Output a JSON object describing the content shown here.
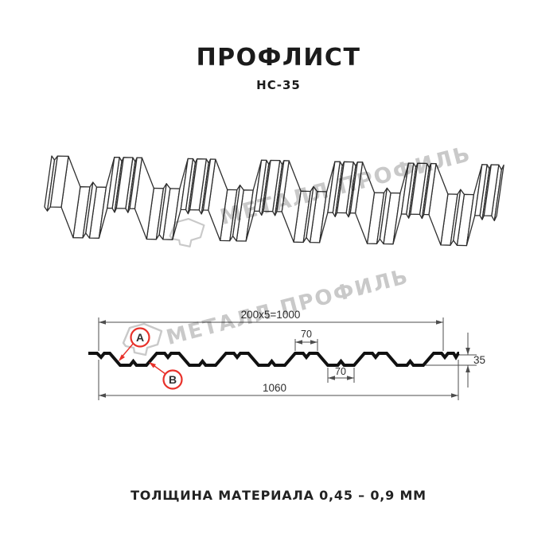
{
  "header": {
    "title": "ПРОФЛИСТ",
    "subtitle": "НС-35"
  },
  "watermark": {
    "text": "МЕТАЛЛ ПРОФИЛЬ"
  },
  "cross_section": {
    "dimensions": {
      "top_width": "200x5=1000",
      "flange_top": "70",
      "flange_bottom": "70",
      "height": "35",
      "total_width": "1060"
    },
    "markers": [
      {
        "label": "А"
      },
      {
        "label": "В"
      }
    ]
  },
  "footer": {
    "note": "ТОЛЩИНА МАТЕРИАЛА 0,45 – 0,9 ММ"
  },
  "colors": {
    "accent_red": "#e8312a",
    "watermark_gray": "#c9c9c9",
    "line_dark": "#2e2e2e",
    "dim_line": "#4d4d4d"
  }
}
